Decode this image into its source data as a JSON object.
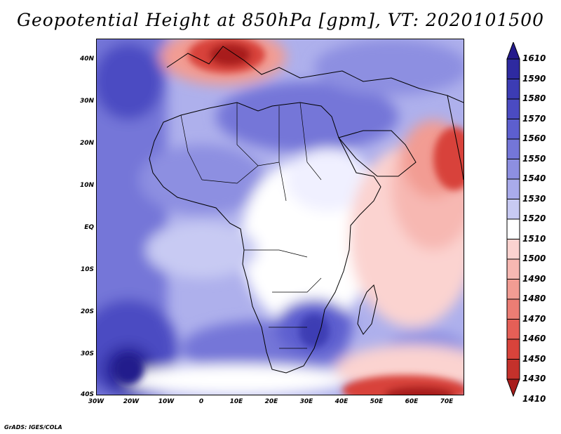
{
  "title": "Geopotential Height at 850hPa [gpm], VT: 2020101500",
  "credit": "GrADS: IGES/COLA",
  "map": {
    "lon_labels": [
      "30W",
      "20W",
      "10W",
      "0",
      "10E",
      "20E",
      "30E",
      "40E",
      "50E",
      "60E",
      "70E"
    ],
    "lat_labels": [
      "40N",
      "30N",
      "20N",
      "10N",
      "EQ",
      "10S",
      "20S",
      "30S",
      "40S"
    ]
  },
  "colorbar": {
    "levels": [
      {
        "label": "1610",
        "color": "#241a8c"
      },
      {
        "label": "1590",
        "color": "#2e2aa0"
      },
      {
        "label": "1580",
        "color": "#3c3cb4"
      },
      {
        "label": "1570",
        "color": "#4b4bc2"
      },
      {
        "label": "1560",
        "color": "#5d5fcf"
      },
      {
        "label": "1550",
        "color": "#7476d8"
      },
      {
        "label": "1540",
        "color": "#8d8fe1"
      },
      {
        "label": "1530",
        "color": "#a9abeb"
      },
      {
        "label": "1520",
        "color": "#c8caf3"
      },
      {
        "label": "1510",
        "color": "#ffffff"
      },
      {
        "label": "1500",
        "color": "#fbd3d0"
      },
      {
        "label": "1490",
        "color": "#f7b8b2"
      },
      {
        "label": "1480",
        "color": "#f29c93"
      },
      {
        "label": "1470",
        "color": "#ec7d74"
      },
      {
        "label": "1460",
        "color": "#e55f57"
      },
      {
        "label": "1450",
        "color": "#d8433b"
      },
      {
        "label": "1430",
        "color": "#c4312b"
      },
      {
        "label": "1410",
        "color": "#a81d1c"
      }
    ]
  }
}
